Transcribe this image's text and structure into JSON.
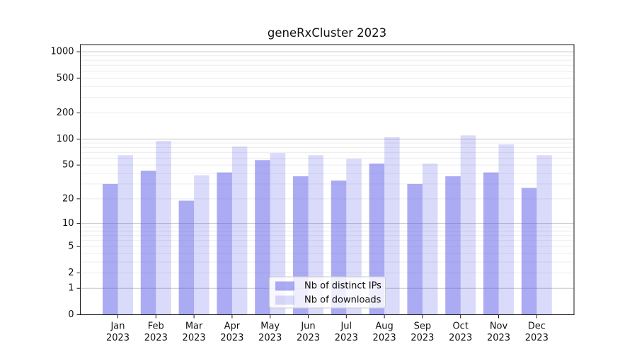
{
  "title": "geneRxCluster 2023",
  "chart_data": {
    "type": "bar",
    "title": "geneRxCluster 2023",
    "categories": [
      "Jan 2023",
      "Feb 2023",
      "Mar 2023",
      "Apr 2023",
      "May 2023",
      "Jun 2023",
      "Jul 2023",
      "Aug 2023",
      "Sep 2023",
      "Oct 2023",
      "Nov 2023",
      "Dec 2023"
    ],
    "month_labels": [
      "Jan",
      "Feb",
      "Mar",
      "Apr",
      "May",
      "Jun",
      "Jul",
      "Aug",
      "Sep",
      "Oct",
      "Nov",
      "Dec"
    ],
    "year_label": "2023",
    "series": [
      {
        "name": "Nb of distinct IPs",
        "color": "#5757e7",
        "alpha": 0.5,
        "values": [
          30,
          43,
          19,
          41,
          57,
          37,
          33,
          52,
          30,
          37,
          41,
          27
        ]
      },
      {
        "name": "Nb of downloads",
        "color": "#5757e7",
        "alpha": 0.22,
        "values": [
          65,
          95,
          38,
          82,
          69,
          65,
          59,
          105,
          52,
          110,
          87,
          65
        ]
      }
    ],
    "yscale": "log1p",
    "yticks": [
      0,
      1,
      2,
      5,
      10,
      20,
      50,
      100,
      200,
      500,
      1000
    ],
    "ylim": [
      0,
      1207
    ],
    "grid": {
      "major": [
        1,
        10,
        100,
        1000
      ],
      "minor_per_decade": [
        2,
        3,
        4,
        5,
        6,
        7,
        8,
        9
      ],
      "major_color": "#c6c6c6",
      "minor_color": "#ececec"
    },
    "legend": {
      "entries": [
        "Nb of distinct IPs",
        "Nb of downloads"
      ],
      "position": "lower center"
    }
  }
}
